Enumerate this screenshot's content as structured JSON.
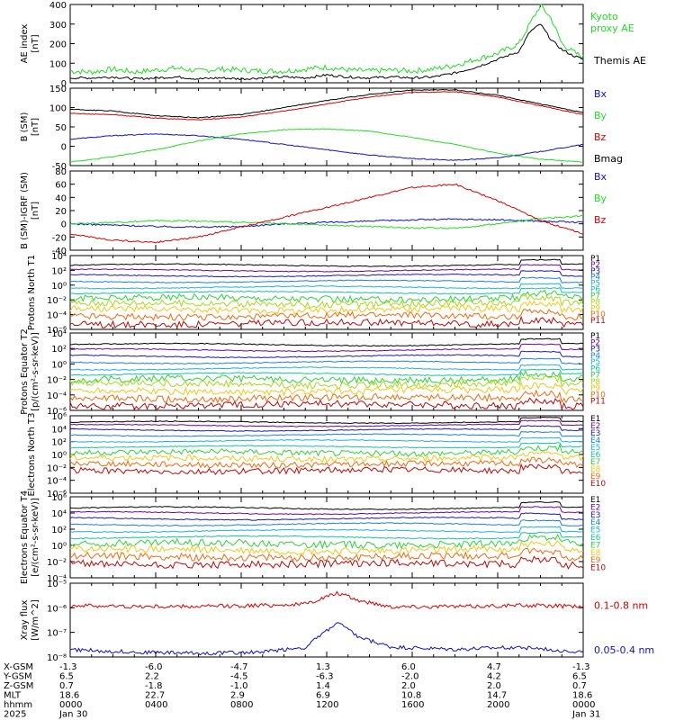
{
  "colors": {
    "black": "#000000",
    "red": "#d40000",
    "green": "#22dd22",
    "blue": "#1010c0",
    "palette": [
      "#000000",
      "#7a0099",
      "#1a1aa8",
      "#1a7fe0",
      "#19b4d8",
      "#18c2a0",
      "#2fd23a",
      "#a8d81c",
      "#f0c81a",
      "#ee6a12",
      "#b80a0a"
    ]
  },
  "time_axis": {
    "rows": [
      {
        "label": "X-GSM",
        "values": [
          "-1.3",
          "-6.0",
          "-4.7",
          "1.3",
          "6.0",
          "4.7",
          "-1.3"
        ]
      },
      {
        "label": "Y-GSM",
        "values": [
          "6.5",
          "2.2",
          "-4.5",
          "-6.3",
          "-2.0",
          "4.2",
          "6.5"
        ]
      },
      {
        "label": "Z-GSM",
        "values": [
          "0.7",
          "-1.8",
          "-1.0",
          "1.4",
          "2.0",
          "2.0",
          "0.7"
        ]
      },
      {
        "label": "MLT",
        "values": [
          "18.6",
          "22.7",
          "2.9",
          "6.9",
          "10.8",
          "14.7",
          "18.6"
        ]
      },
      {
        "label": "hhmm",
        "values": [
          "0000",
          "0400",
          "0800",
          "1200",
          "1600",
          "2000",
          "0000"
        ]
      },
      {
        "label": "2025",
        "values": [
          "Jan 30",
          "",
          "",
          "",
          "",
          "",
          "Jan 31"
        ]
      }
    ]
  },
  "chart_data": [
    {
      "type": "line",
      "ylabel": "AE index [nT]",
      "ylim": [
        0,
        400
      ],
      "yticks": [
        "400",
        "300",
        "200",
        "100",
        "0"
      ],
      "series": [
        {
          "name": "Kyoto proxy AE",
          "color": "#22dd22",
          "values": [
            [
              0,
              60
            ],
            [
              1,
              55
            ],
            [
              2,
              70
            ],
            [
              3,
              55
            ],
            [
              4,
              65
            ],
            [
              5,
              75
            ],
            [
              6,
              60
            ],
            [
              7,
              70
            ],
            [
              8,
              65
            ],
            [
              9,
              60
            ],
            [
              10,
              60
            ],
            [
              11,
              70
            ],
            [
              12,
              80
            ],
            [
              13,
              65
            ],
            [
              14,
              60
            ],
            [
              15,
              65
            ],
            [
              16,
              60
            ],
            [
              17,
              70
            ],
            [
              18,
              90
            ],
            [
              19,
              120
            ],
            [
              20,
              150
            ],
            [
              21,
              200
            ],
            [
              21.5,
              300
            ],
            [
              22,
              395
            ],
            [
              22.5,
              330
            ],
            [
              23,
              200
            ],
            [
              23.5,
              160
            ],
            [
              24,
              130
            ]
          ]
        },
        {
          "name": "Themis AE",
          "color": "#000000",
          "values": [
            [
              0,
              25
            ],
            [
              1,
              25
            ],
            [
              2,
              30
            ],
            [
              3,
              20
            ],
            [
              4,
              25
            ],
            [
              5,
              30
            ],
            [
              6,
              20
            ],
            [
              7,
              25
            ],
            [
              8,
              20
            ],
            [
              9,
              25
            ],
            [
              10,
              30
            ],
            [
              11,
              25
            ],
            [
              12,
              40
            ],
            [
              13,
              30
            ],
            [
              14,
              25
            ],
            [
              15,
              30
            ],
            [
              16,
              25
            ],
            [
              17,
              30
            ],
            [
              18,
              50
            ],
            [
              19,
              80
            ],
            [
              20,
              120
            ],
            [
              21,
              160
            ],
            [
              21.5,
              260
            ],
            [
              22,
              300
            ],
            [
              22.5,
              220
            ],
            [
              23,
              170
            ],
            [
              23.5,
              140
            ],
            [
              24,
              120
            ]
          ]
        }
      ]
    },
    {
      "type": "line",
      "ylabel": "B (SM) [nT]",
      "ylim": [
        -60,
        160
      ],
      "yticks": [
        "150",
        "100",
        "50",
        "0",
        "-50"
      ],
      "series": [
        {
          "name": "Bx",
          "color": "#1010c0",
          "values": [
            [
              0,
              15
            ],
            [
              2,
              25
            ],
            [
              4,
              30
            ],
            [
              6,
              25
            ],
            [
              8,
              15
            ],
            [
              10,
              0
            ],
            [
              12,
              -15
            ],
            [
              14,
              -30
            ],
            [
              16,
              -40
            ],
            [
              18,
              -45
            ],
            [
              20,
              -38
            ],
            [
              22,
              -20
            ],
            [
              24,
              0
            ]
          ]
        },
        {
          "name": "By",
          "color": "#22dd22",
          "values": [
            [
              0,
              -50
            ],
            [
              2,
              -35
            ],
            [
              4,
              -15
            ],
            [
              6,
              10
            ],
            [
              8,
              30
            ],
            [
              10,
              42
            ],
            [
              12,
              44
            ],
            [
              14,
              38
            ],
            [
              16,
              20
            ],
            [
              18,
              0
            ],
            [
              20,
              -25
            ],
            [
              22,
              -42
            ],
            [
              24,
              -50
            ]
          ]
        },
        {
          "name": "Bz",
          "color": "#d40000",
          "values": [
            [
              0,
              88
            ],
            [
              2,
              85
            ],
            [
              4,
              75
            ],
            [
              6,
              70
            ],
            [
              8,
              78
            ],
            [
              10,
              95
            ],
            [
              12,
              115
            ],
            [
              14,
              135
            ],
            [
              16,
              148
            ],
            [
              18,
              150
            ],
            [
              20,
              135
            ],
            [
              22,
              110
            ],
            [
              24,
              85
            ]
          ]
        },
        {
          "name": "Bmag",
          "color": "#000000",
          "values": [
            [
              0,
              100
            ],
            [
              2,
              95
            ],
            [
              4,
              82
            ],
            [
              6,
              76
            ],
            [
              8,
              85
            ],
            [
              10,
              105
            ],
            [
              12,
              125
            ],
            [
              14,
              142
            ],
            [
              16,
              155
            ],
            [
              18,
              155
            ],
            [
              20,
              140
            ],
            [
              22,
              115
            ],
            [
              24,
              90
            ]
          ]
        }
      ]
    },
    {
      "type": "line",
      "ylabel": "B (SM)-IGRF (SM) [nT]",
      "ylim": [
        -40,
        80
      ],
      "yticks": [
        "80",
        "60",
        "40",
        "20",
        "0",
        "-20",
        "-40"
      ],
      "series": [
        {
          "name": "Bx",
          "color": "#1010c0",
          "values": [
            [
              0,
              0
            ],
            [
              2,
              -2
            ],
            [
              4,
              -4
            ],
            [
              6,
              -5
            ],
            [
              8,
              -4
            ],
            [
              10,
              0
            ],
            [
              12,
              2
            ],
            [
              14,
              4
            ],
            [
              16,
              6
            ],
            [
              18,
              7
            ],
            [
              20,
              6
            ],
            [
              22,
              4
            ],
            [
              24,
              2
            ]
          ]
        },
        {
          "name": "By",
          "color": "#22dd22",
          "values": [
            [
              0,
              0
            ],
            [
              2,
              2
            ],
            [
              4,
              5
            ],
            [
              6,
              4
            ],
            [
              8,
              2
            ],
            [
              10,
              0
            ],
            [
              12,
              -2
            ],
            [
              14,
              -4
            ],
            [
              16,
              -6
            ],
            [
              18,
              -7
            ],
            [
              20,
              0
            ],
            [
              22,
              8
            ],
            [
              24,
              12
            ]
          ]
        },
        {
          "name": "Bz",
          "color": "#d40000",
          "values": [
            [
              0,
              -15
            ],
            [
              2,
              -25
            ],
            [
              4,
              -28
            ],
            [
              6,
              -20
            ],
            [
              8,
              -5
            ],
            [
              10,
              10
            ],
            [
              12,
              25
            ],
            [
              14,
              40
            ],
            [
              16,
              55
            ],
            [
              18,
              60
            ],
            [
              20,
              35
            ],
            [
              22,
              5
            ],
            [
              24,
              -15
            ]
          ]
        }
      ]
    },
    {
      "type": "line",
      "ylabel": "Protons North T1",
      "log": true,
      "ylim": [
        -6,
        4
      ],
      "yticks": [
        "10^4",
        "10^2",
        "10^0",
        "10^-2",
        "10^-4",
        "10^-6"
      ],
      "series": [
        {
          "name": "P1",
          "level": 2.7
        },
        {
          "name": "P2",
          "level": 2.0
        },
        {
          "name": "P3",
          "level": 1.3
        },
        {
          "name": "P4",
          "level": 0.5
        },
        {
          "name": "P5",
          "level": -0.3
        },
        {
          "name": "P6",
          "level": -1.0
        },
        {
          "name": "P7",
          "level": -1.8
        },
        {
          "name": "P8",
          "level": -2.5
        },
        {
          "name": "P9",
          "level": -3.3
        },
        {
          "name": "P10",
          "level": -4.2
        },
        {
          "name": "P11",
          "level": -5.2
        }
      ]
    },
    {
      "type": "line",
      "ylabel": "Protons Equator T2 [p/(cm²-s-sr-keV)]",
      "log": true,
      "ylim": [
        -6,
        4
      ],
      "yticks": [
        "10^4",
        "10^2",
        "10^0",
        "10^-2",
        "10^-4",
        "10^-6"
      ],
      "series": [
        {
          "name": "P1",
          "level": 2.5
        },
        {
          "name": "P2",
          "level": 1.8
        },
        {
          "name": "P3",
          "level": 1.0
        },
        {
          "name": "P4",
          "level": 0.2
        },
        {
          "name": "P5",
          "level": -0.6
        },
        {
          "name": "P6",
          "level": -1.3
        },
        {
          "name": "P7",
          "level": -2.0
        },
        {
          "name": "P8",
          "level": -2.6
        },
        {
          "name": "P9",
          "level": -3.5
        },
        {
          "name": "P10",
          "level": -4.4
        },
        {
          "name": "P11",
          "level": -5.3
        }
      ]
    },
    {
      "type": "line",
      "ylabel": "Electrons North T3",
      "log": true,
      "ylim": [
        -6,
        6
      ],
      "yticks": [
        "10^6",
        "10^4",
        "10^2",
        "10^0",
        "10^-2",
        "10^-4",
        "10^-6"
      ],
      "series": [
        {
          "name": "E1",
          "level": 5.0
        },
        {
          "name": "E2",
          "level": 4.5
        },
        {
          "name": "E3",
          "level": 3.8
        },
        {
          "name": "E4",
          "level": 3.0
        },
        {
          "name": "E5",
          "level": 2.1
        },
        {
          "name": "E6",
          "level": 1.2
        },
        {
          "name": "E7",
          "level": 0.3
        },
        {
          "name": "E8",
          "level": -0.6
        },
        {
          "name": "E9",
          "level": -1.5
        },
        {
          "name": "E10",
          "level": -2.5
        }
      ]
    },
    {
      "type": "line",
      "ylabel": "Electrons Equator T4 [e/(cm²-s-sr-keV)]",
      "log": true,
      "ylim": [
        -4,
        6
      ],
      "yticks": [
        "10^6",
        "10^4",
        "10^2",
        "10^0",
        "10^-2",
        "10^-4"
      ],
      "series": [
        {
          "name": "E1",
          "level": 4.6
        },
        {
          "name": "E2",
          "level": 4.0
        },
        {
          "name": "E3",
          "level": 3.3
        },
        {
          "name": "E4",
          "level": 2.6
        },
        {
          "name": "E5",
          "level": 1.8
        },
        {
          "name": "E6",
          "level": 1.0
        },
        {
          "name": "E7",
          "level": 0.2
        },
        {
          "name": "E8",
          "level": -0.6
        },
        {
          "name": "E9",
          "level": -1.4
        },
        {
          "name": "E10",
          "level": -2.3
        }
      ]
    },
    {
      "type": "line",
      "ylabel": "Xray flux [W/m^2]",
      "log": true,
      "ylim": [
        -8,
        -5
      ],
      "yticks": [
        "10^-5",
        "10^-6",
        "10^-7",
        "10^-8"
      ],
      "series": [
        {
          "name": "0.1-0.8 nm",
          "color": "#d40000",
          "values": [
            [
              0,
              -5.9
            ],
            [
              3,
              -5.95
            ],
            [
              6,
              -5.95
            ],
            [
              9,
              -5.9
            ],
            [
              11,
              -5.85
            ],
            [
              12.5,
              -5.4
            ],
            [
              13.5,
              -5.7
            ],
            [
              15,
              -5.95
            ],
            [
              18,
              -5.95
            ],
            [
              21,
              -5.9
            ],
            [
              24,
              -5.95
            ]
          ]
        },
        {
          "name": "0.05-0.4 nm",
          "color": "#1010c0",
          "values": [
            [
              0,
              -7.7
            ],
            [
              3,
              -7.8
            ],
            [
              6,
              -7.85
            ],
            [
              9,
              -7.8
            ],
            [
              11,
              -7.6
            ],
            [
              12.5,
              -6.6
            ],
            [
              13.5,
              -7.2
            ],
            [
              15,
              -7.6
            ],
            [
              18,
              -7.7
            ],
            [
              21,
              -7.6
            ],
            [
              24,
              -7.8
            ]
          ]
        }
      ]
    }
  ]
}
